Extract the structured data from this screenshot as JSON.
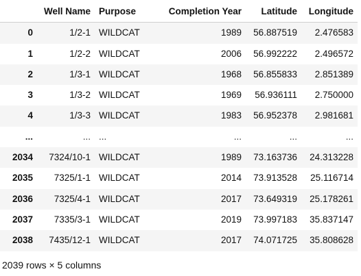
{
  "table": {
    "columns": [
      "",
      "Well Name",
      "Purpose",
      "Completion Year",
      "Latitude",
      "Longitude"
    ],
    "rows": [
      {
        "index": "0",
        "well_name": "1/2-1",
        "purpose": "WILDCAT",
        "completion_year": "1989",
        "latitude": "56.887519",
        "longitude": "2.476583"
      },
      {
        "index": "1",
        "well_name": "1/2-2",
        "purpose": "WILDCAT",
        "completion_year": "2006",
        "latitude": "56.992222",
        "longitude": "2.496572"
      },
      {
        "index": "2",
        "well_name": "1/3-1",
        "purpose": "WILDCAT",
        "completion_year": "1968",
        "latitude": "56.855833",
        "longitude": "2.851389"
      },
      {
        "index": "3",
        "well_name": "1/3-2",
        "purpose": "WILDCAT",
        "completion_year": "1969",
        "latitude": "56.936111",
        "longitude": "2.750000"
      },
      {
        "index": "4",
        "well_name": "1/3-3",
        "purpose": "WILDCAT",
        "completion_year": "1983",
        "latitude": "56.952378",
        "longitude": "2.981681"
      },
      {
        "index": "...",
        "well_name": "...",
        "purpose": "...",
        "completion_year": "...",
        "latitude": "...",
        "longitude": "..."
      },
      {
        "index": "2034",
        "well_name": "7324/10-1",
        "purpose": "WILDCAT",
        "completion_year": "1989",
        "latitude": "73.163736",
        "longitude": "24.313228"
      },
      {
        "index": "2035",
        "well_name": "7325/1-1",
        "purpose": "WILDCAT",
        "completion_year": "2014",
        "latitude": "73.913528",
        "longitude": "25.116714"
      },
      {
        "index": "2036",
        "well_name": "7325/4-1",
        "purpose": "WILDCAT",
        "completion_year": "2017",
        "latitude": "73.649319",
        "longitude": "25.178261"
      },
      {
        "index": "2037",
        "well_name": "7335/3-1",
        "purpose": "WILDCAT",
        "completion_year": "2019",
        "latitude": "73.997183",
        "longitude": "35.837147"
      },
      {
        "index": "2038",
        "well_name": "7435/12-1",
        "purpose": "WILDCAT",
        "completion_year": "2017",
        "latitude": "74.071725",
        "longitude": "35.808628"
      }
    ]
  },
  "summary": "2039 rows × 5 columns"
}
